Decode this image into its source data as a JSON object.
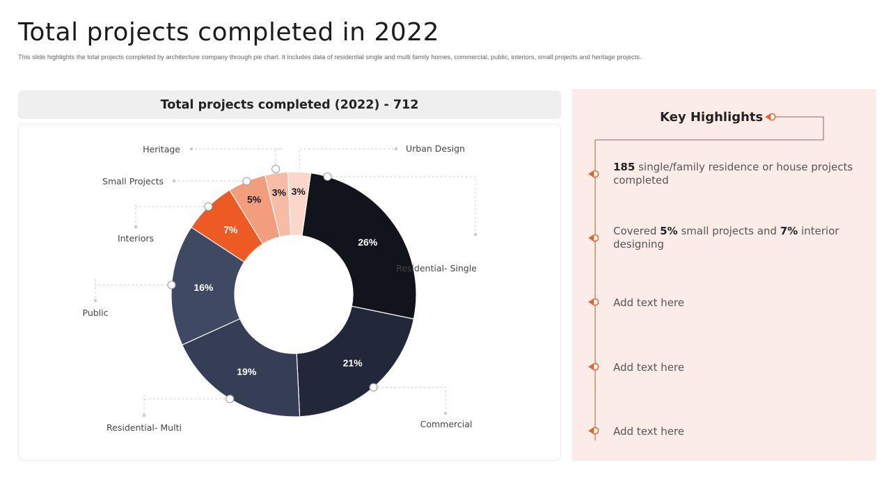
{
  "slide": {
    "title": "Total projects completed in 2022",
    "subtitle": "This slide highlights the total projects completed by architecture company through pie chart. It includes data of residential single and multi  family homes, commercial, public, interiors, small projects and heritage projects."
  },
  "chart_data": {
    "type": "pie",
    "donut": true,
    "title": "Total projects completed (2022) - 712",
    "categories": [
      "Residential- Single",
      "Commercial",
      "Residential- Multi",
      "Public",
      "Interiors",
      "Small Projects",
      "Heritage",
      "Urban Design"
    ],
    "values": [
      26,
      21,
      19,
      16,
      7,
      5,
      3,
      3
    ],
    "value_labels": [
      "26%",
      "21%",
      "19%",
      "16%",
      "7%",
      "5%",
      "3%",
      "3%"
    ],
    "colors": [
      "#11141b",
      "#22283a",
      "#363e56",
      "#3f4964",
      "#ee5a24",
      "#f29d7c",
      "#f6bca6",
      "#fad7ca"
    ],
    "label_colors": [
      "#ffffff",
      "#ffffff",
      "#ffffff",
      "#ffffff",
      "#ffffff",
      "#1b1b1b",
      "#1b1b1b",
      "#1b1b1b"
    ],
    "legend": "callout labels around the chart"
  },
  "highlights": {
    "title": "Key Highlights",
    "accent_color": "#e8602c",
    "items": [
      {
        "bold": "185",
        "pre": "",
        "mid": " single/family residence or house projects completed",
        "bold2": "",
        "post": ""
      },
      {
        "pre": "Covered ",
        "bold": "5%",
        "mid": " small projects and ",
        "bold2": "7%",
        "post": " interior designing"
      },
      {
        "pre": "Add text here",
        "bold": "",
        "mid": "",
        "bold2": "",
        "post": ""
      },
      {
        "pre": "Add text here",
        "bold": "",
        "mid": "",
        "bold2": "",
        "post": ""
      },
      {
        "pre": "Add text here",
        "bold": "",
        "mid": "",
        "bold2": "",
        "post": ""
      }
    ]
  }
}
